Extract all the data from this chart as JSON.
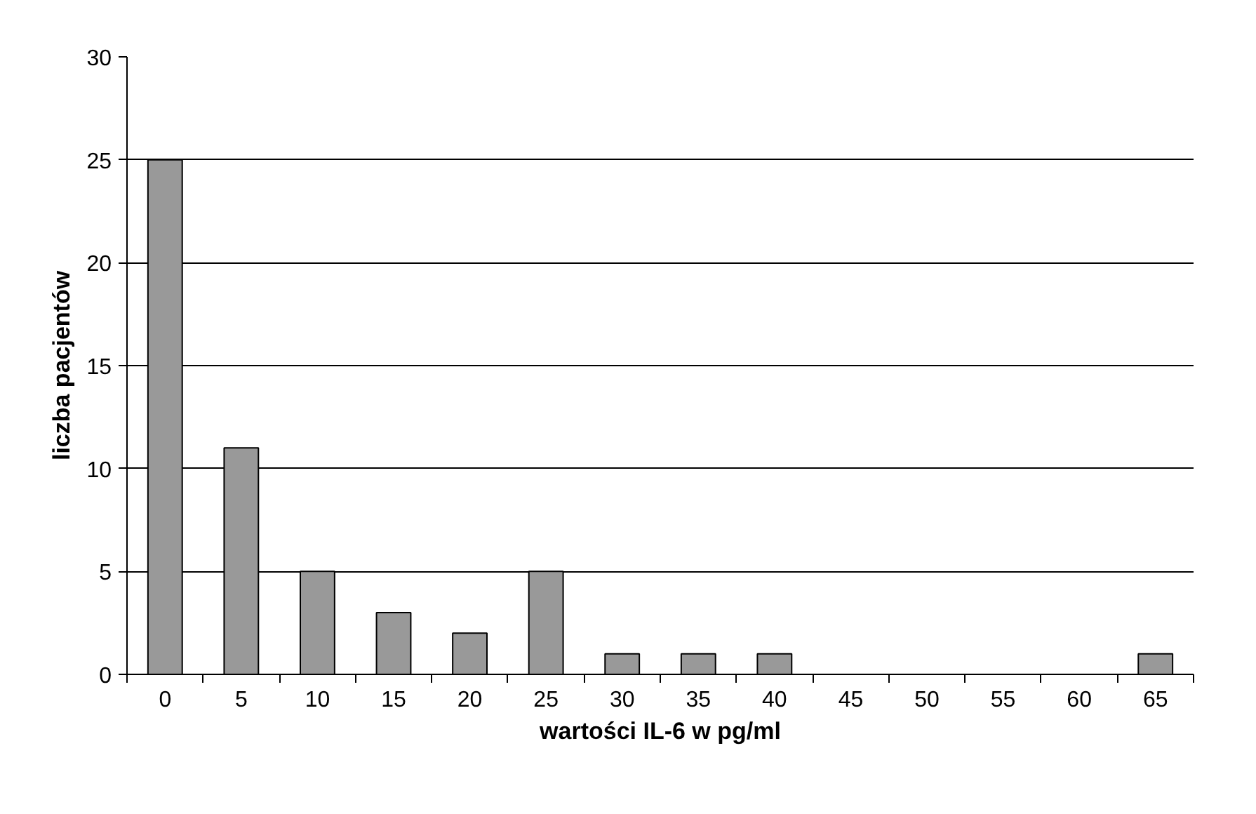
{
  "chart_data": {
    "type": "bar",
    "xlabel": "wartości IL-6 w pg/ml",
    "ylabel": "liczba pacjentów",
    "categories": [
      "0",
      "5",
      "10",
      "15",
      "20",
      "25",
      "30",
      "35",
      "40",
      "45",
      "50",
      "55",
      "60",
      "65"
    ],
    "values": [
      25,
      11,
      5,
      3,
      2,
      5,
      1,
      1,
      1,
      0,
      0,
      0,
      0,
      1
    ],
    "color": "#999999",
    "ylim": [
      0,
      30
    ],
    "yticks": [
      0,
      5,
      10,
      15,
      20,
      25,
      30
    ],
    "grid": "y"
  }
}
